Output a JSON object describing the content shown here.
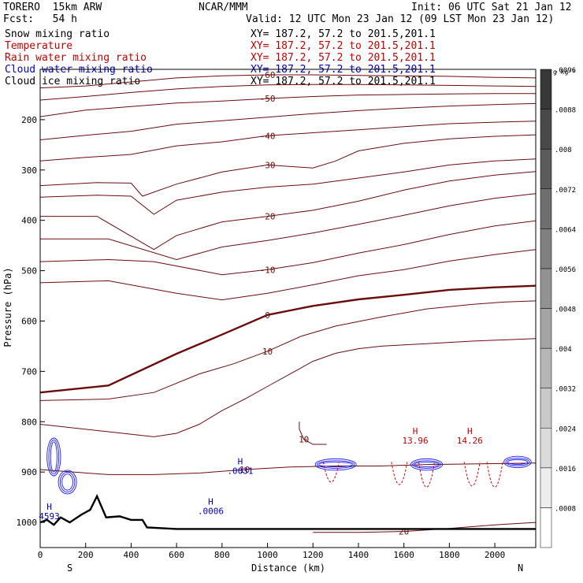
{
  "header": {
    "model": "TORERO  15km ARW",
    "center": "NCAR/MMM",
    "init": "Init: 06 UTC Sat 21 Jan 12",
    "fcst": "Fcst:   54 h",
    "valid": "Valid: 12 UTC Mon 23 Jan 12 (09 LST Mon 23 Jan 12)"
  },
  "fields": [
    {
      "name": "Snow mixing ratio",
      "xy": "XY= 187.2, 57.2 to 201.5,201.1",
      "color": "#000000"
    },
    {
      "name": "Temperature",
      "xy": "XY= 187.2, 57.2 to 201.5,201.1",
      "color": "#c00000"
    },
    {
      "name": "Rain water mixing ratio",
      "xy": "XY= 187.2, 57.2 to 201.5,201.1",
      "color": "#c00000"
    },
    {
      "name": "Cloud water mixing ratio",
      "xy": "XY= 187.2, 57.2 to 201.5,201.1",
      "color": "#0000c0"
    },
    {
      "name": "Cloud ice mixing ratio",
      "xy": "XY= 187.2, 57.2 to 201.5,201.1",
      "color": "#000000"
    }
  ],
  "chart_data": {
    "type": "contour",
    "xlabel": "Distance (km)",
    "ylabel": "Pressure (hPa)",
    "xlim": [
      0,
      2180
    ],
    "ylim": [
      1050,
      100
    ],
    "x_ticks": [
      0,
      200,
      400,
      600,
      800,
      1000,
      1200,
      1400,
      1600,
      1800,
      2000
    ],
    "y_ticks": [
      200,
      300,
      400,
      500,
      600,
      700,
      800,
      900,
      1000
    ],
    "x_end_labels": {
      "left": "S",
      "right": "N"
    },
    "colorbar": {
      "unit": "g kg⁻¹",
      "ticks": [
        ".0008",
        ".0016",
        ".0024",
        ".0032",
        ".004",
        ".0048",
        ".0056",
        ".0064",
        ".0072",
        ".008",
        ".0088",
        ".0096"
      ],
      "levels": [
        0.0004,
        0.0012,
        0.002,
        0.0028,
        0.0036,
        0.0044,
        0.0052,
        0.006,
        0.0068,
        0.0076,
        0.0084,
        0.0092,
        0.01
      ]
    },
    "temperature_contours": [
      {
        "label": "-60",
        "points": [
          [
            0,
            137
          ],
          [
            200,
            133
          ],
          [
            400,
            125
          ],
          [
            600,
            117
          ],
          [
            800,
            113
          ],
          [
            1000,
            111
          ],
          [
            1200,
            111
          ],
          [
            1400,
            112
          ],
          [
            1600,
            113
          ],
          [
            1800,
            114
          ],
          [
            2000,
            116
          ],
          [
            2180,
            117
          ]
        ]
      },
      {
        "label": "",
        "points": [
          [
            0,
            161
          ],
          [
            200,
            154
          ],
          [
            400,
            146
          ],
          [
            600,
            139
          ],
          [
            800,
            134
          ],
          [
            1000,
            131
          ],
          [
            1200,
            130
          ],
          [
            1400,
            130
          ],
          [
            1600,
            131
          ],
          [
            1800,
            132
          ],
          [
            2000,
            133
          ],
          [
            2180,
            134
          ]
        ]
      },
      {
        "label": "-50",
        "points": [
          [
            0,
            194
          ],
          [
            200,
            181
          ],
          [
            400,
            174
          ],
          [
            600,
            167
          ],
          [
            800,
            163
          ],
          [
            1000,
            158
          ],
          [
            1200,
            154
          ],
          [
            1400,
            151
          ],
          [
            1600,
            150
          ],
          [
            1800,
            149
          ],
          [
            2000,
            148
          ],
          [
            2180,
            148
          ]
        ]
      },
      {
        "label": "",
        "points": [
          [
            0,
            240
          ],
          [
            200,
            231
          ],
          [
            400,
            223
          ],
          [
            600,
            209
          ],
          [
            800,
            202
          ],
          [
            1000,
            195
          ],
          [
            1200,
            188
          ],
          [
            1400,
            182
          ],
          [
            1600,
            177
          ],
          [
            1800,
            173
          ],
          [
            2000,
            170
          ],
          [
            2180,
            168
          ]
        ]
      },
      {
        "label": "-40",
        "points": [
          [
            0,
            282
          ],
          [
            200,
            275
          ],
          [
            400,
            269
          ],
          [
            600,
            252
          ],
          [
            800,
            244
          ],
          [
            1000,
            232
          ],
          [
            1200,
            226
          ],
          [
            1400,
            220
          ],
          [
            1600,
            214
          ],
          [
            1800,
            208
          ],
          [
            2000,
            205
          ],
          [
            2180,
            203
          ]
        ]
      },
      {
        "label": "-30",
        "points": [
          [
            0,
            331
          ],
          [
            250,
            325
          ],
          [
            400,
            326
          ],
          [
            450,
            352
          ],
          [
            600,
            328
          ],
          [
            800,
            304
          ],
          [
            1000,
            290
          ],
          [
            1200,
            296
          ],
          [
            1300,
            282
          ],
          [
            1400,
            262
          ],
          [
            1600,
            247
          ],
          [
            1800,
            238
          ],
          [
            2000,
            233
          ],
          [
            2180,
            230
          ]
        ]
      },
      {
        "label": "",
        "points": [
          [
            0,
            354
          ],
          [
            250,
            350
          ],
          [
            400,
            352
          ],
          [
            500,
            388
          ],
          [
            600,
            360
          ],
          [
            800,
            344
          ],
          [
            1000,
            334
          ],
          [
            1200,
            328
          ],
          [
            1400,
            316
          ],
          [
            1600,
            304
          ],
          [
            1800,
            290
          ],
          [
            2000,
            282
          ],
          [
            2180,
            278
          ]
        ]
      },
      {
        "label": "-20",
        "points": [
          [
            0,
            392
          ],
          [
            250,
            392
          ],
          [
            500,
            458
          ],
          [
            600,
            430
          ],
          [
            800,
            403
          ],
          [
            1000,
            392
          ],
          [
            1200,
            380
          ],
          [
            1400,
            362
          ],
          [
            1600,
            340
          ],
          [
            1800,
            322
          ],
          [
            2000,
            310
          ],
          [
            2180,
            303
          ]
        ]
      },
      {
        "label": "",
        "points": [
          [
            0,
            437
          ],
          [
            300,
            437
          ],
          [
            600,
            478
          ],
          [
            800,
            453
          ],
          [
            1000,
            440
          ],
          [
            1200,
            425
          ],
          [
            1400,
            408
          ],
          [
            1600,
            390
          ],
          [
            1800,
            371
          ],
          [
            2000,
            356
          ],
          [
            2180,
            347
          ]
        ]
      },
      {
        "label": "-10",
        "points": [
          [
            0,
            482
          ],
          [
            300,
            478
          ],
          [
            500,
            482
          ],
          [
            800,
            508
          ],
          [
            1000,
            498
          ],
          [
            1200,
            484
          ],
          [
            1400,
            465
          ],
          [
            1600,
            448
          ],
          [
            1800,
            428
          ],
          [
            2000,
            411
          ],
          [
            2180,
            401
          ]
        ]
      },
      {
        "label": "",
        "points": [
          [
            0,
            524
          ],
          [
            300,
            520
          ],
          [
            600,
            545
          ],
          [
            800,
            558
          ],
          [
            1000,
            545
          ],
          [
            1200,
            528
          ],
          [
            1400,
            510
          ],
          [
            1600,
            498
          ],
          [
            1800,
            481
          ],
          [
            2000,
            468
          ],
          [
            2180,
            458
          ]
        ]
      },
      {
        "label": "0",
        "bold": true,
        "points": [
          [
            0,
            742
          ],
          [
            300,
            728
          ],
          [
            600,
            665
          ],
          [
            800,
            627
          ],
          [
            1000,
            588
          ],
          [
            1200,
            570
          ],
          [
            1400,
            557
          ],
          [
            1600,
            548
          ],
          [
            1800,
            538
          ],
          [
            2000,
            533
          ],
          [
            2180,
            530
          ]
        ]
      },
      {
        "label": "10",
        "points": [
          [
            0,
            758
          ],
          [
            300,
            755
          ],
          [
            500,
            742
          ],
          [
            700,
            705
          ],
          [
            850,
            685
          ],
          [
            1000,
            660
          ],
          [
            1150,
            630
          ],
          [
            1300,
            610
          ],
          [
            1500,
            592
          ],
          [
            1700,
            576
          ],
          [
            1900,
            567
          ],
          [
            2050,
            562
          ],
          [
            2180,
            560
          ]
        ]
      },
      {
        "label": "",
        "points": [
          [
            0,
            805
          ],
          [
            300,
            820
          ],
          [
            500,
            830
          ],
          [
            600,
            823
          ],
          [
            700,
            805
          ],
          [
            800,
            778
          ],
          [
            900,
            755
          ],
          [
            1000,
            730
          ],
          [
            1100,
            705
          ],
          [
            1200,
            680
          ],
          [
            1300,
            664
          ],
          [
            1400,
            655
          ],
          [
            1500,
            650
          ],
          [
            1700,
            645
          ],
          [
            1900,
            640
          ],
          [
            2180,
            635
          ]
        ]
      },
      {
        "label": "10",
        "points": [
          [
            1140,
            800
          ],
          [
            1140,
            815
          ],
          [
            1160,
            835
          ],
          [
            1200,
            845
          ],
          [
            1260,
            845
          ]
        ]
      },
      {
        "label": "10",
        "points": [
          [
            0,
            895
          ],
          [
            300,
            905
          ],
          [
            500,
            905
          ],
          [
            700,
            902
          ],
          [
            900,
            895
          ],
          [
            1100,
            890
          ],
          [
            1300,
            888
          ],
          [
            1500,
            888
          ],
          [
            1700,
            885
          ],
          [
            1900,
            884
          ],
          [
            2180,
            882
          ]
        ]
      },
      {
        "label": "20",
        "points": [
          [
            1200,
            1020
          ],
          [
            1400,
            1020
          ],
          [
            1600,
            1018
          ],
          [
            1800,
            1012
          ],
          [
            2000,
            1005
          ],
          [
            2180,
            1000
          ]
        ]
      }
    ],
    "labels": [
      {
        "text": "H",
        "sub": "13.96",
        "x": 1650,
        "y": 825,
        "color": "#c00000"
      },
      {
        "text": "H",
        "sub": "14.26",
        "x": 1890,
        "y": 825,
        "color": "#c00000"
      },
      {
        "text": "H",
        "sub": ".0031",
        "x": 880,
        "y": 885,
        "color": "#0000c0"
      },
      {
        "text": "H",
        "sub": ".0006",
        "x": 750,
        "y": 965,
        "color": "#0000c0"
      },
      {
        "text": "H",
        "sub": "4593",
        "x": 40,
        "y": 975,
        "color": "#0000c0"
      }
    ],
    "terrain": [
      [
        0,
        1000
      ],
      [
        30,
        995
      ],
      [
        60,
        1005
      ],
      [
        90,
        990
      ],
      [
        130,
        1000
      ],
      [
        180,
        985
      ],
      [
        220,
        975
      ],
      [
        250,
        948
      ],
      [
        290,
        990
      ],
      [
        350,
        988
      ],
      [
        400,
        995
      ],
      [
        450,
        995
      ],
      [
        470,
        1010
      ],
      [
        600,
        1013
      ],
      [
        2180,
        1013
      ]
    ]
  }
}
